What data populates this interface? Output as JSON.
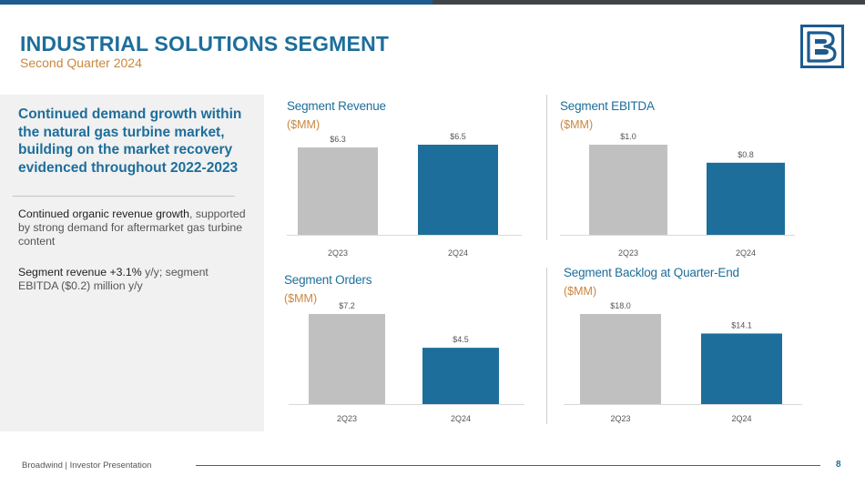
{
  "header": {
    "title": "INDUSTRIAL SOLUTIONS SEGMENT",
    "subtitle": "Second Quarter 2024"
  },
  "colors": {
    "brand_blue": "#1d6e9b",
    "bar_gray": "#c0c0c0",
    "bar_blue": "#1d6e9b",
    "accent_orange": "#c8873e"
  },
  "sidebar": {
    "headline": "Continued demand growth within the natural gas turbine market, building on the market recovery evidenced throughout 2022-2023",
    "para1_strong": "Continued organic revenue growth",
    "para1_rest": ", supported by strong demand for aftermarket gas turbine content",
    "para2_strong": "Segment revenue +3.1%",
    "para2_rest": " y/y; segment EBITDA ($0.2) million y/y"
  },
  "chart_data": [
    {
      "type": "bar",
      "title": "Segment Revenue",
      "unit": "($MM)",
      "categories": [
        "2Q23",
        "2Q24"
      ],
      "values": [
        6.3,
        6.5
      ],
      "value_labels": [
        "$6.3",
        "$6.5"
      ],
      "ylim": [
        0,
        6.5
      ]
    },
    {
      "type": "bar",
      "title": "Segment EBITDA",
      "unit": "($MM)",
      "categories": [
        "2Q23",
        "2Q24"
      ],
      "values": [
        1.0,
        0.8
      ],
      "value_labels": [
        "$1.0",
        "$0.8"
      ],
      "ylim": [
        0,
        1.0
      ]
    },
    {
      "type": "bar",
      "title": "Segment Orders",
      "unit": "($MM)",
      "categories": [
        "2Q23",
        "2Q24"
      ],
      "values": [
        7.2,
        4.5
      ],
      "value_labels": [
        "$7.2",
        "$4.5"
      ],
      "ylim": [
        0,
        7.2
      ]
    },
    {
      "type": "bar",
      "title": "Segment Backlog at Quarter-End",
      "unit": "($MM)",
      "categories": [
        "2Q23",
        "2Q24"
      ],
      "values": [
        18.0,
        14.1
      ],
      "value_labels": [
        "$18.0",
        "$14.1"
      ],
      "ylim": [
        0,
        18.0
      ]
    }
  ],
  "footer": {
    "company": "Broadwind  | Investor Presentation",
    "page": "8"
  },
  "icons": {
    "logo": "broadwind-logo-icon"
  }
}
